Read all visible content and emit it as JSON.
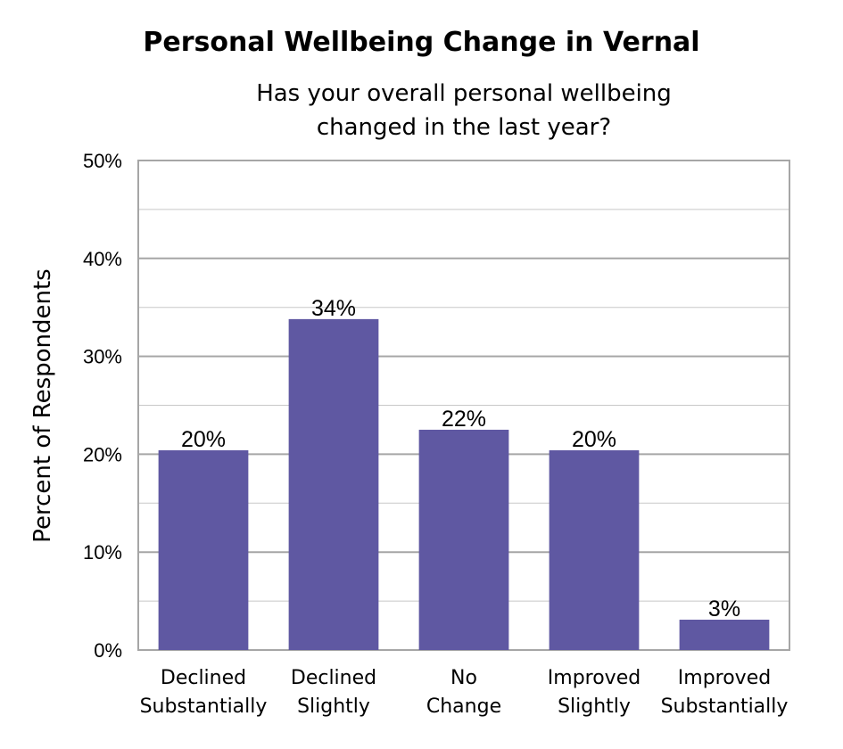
{
  "chart_data": {
    "type": "bar",
    "title": "Personal Wellbeing Change in Vernal",
    "subtitle": [
      "Has your overall personal wellbeing",
      "changed in the last year?"
    ],
    "xlabel": "",
    "ylabel": "Percent of Respondents",
    "categories": [
      [
        "Declined",
        "Substantially"
      ],
      [
        "Declined",
        "Slightly"
      ],
      [
        "No",
        "Change"
      ],
      [
        "Improved",
        "Slightly"
      ],
      [
        "Improved",
        "Substantially"
      ]
    ],
    "values": [
      20.4,
      33.8,
      22.5,
      20.4,
      3.1
    ],
    "value_labels": [
      "20%",
      "34%",
      "22%",
      "20%",
      "3%"
    ],
    "ylim": [
      0,
      50
    ],
    "yticks": [
      0,
      10,
      20,
      30,
      40,
      50
    ],
    "ytick_labels": [
      "0%",
      "10%",
      "20%",
      "30%",
      "40%",
      "50%"
    ],
    "grid": true,
    "bar_color": "#5f58a2"
  }
}
